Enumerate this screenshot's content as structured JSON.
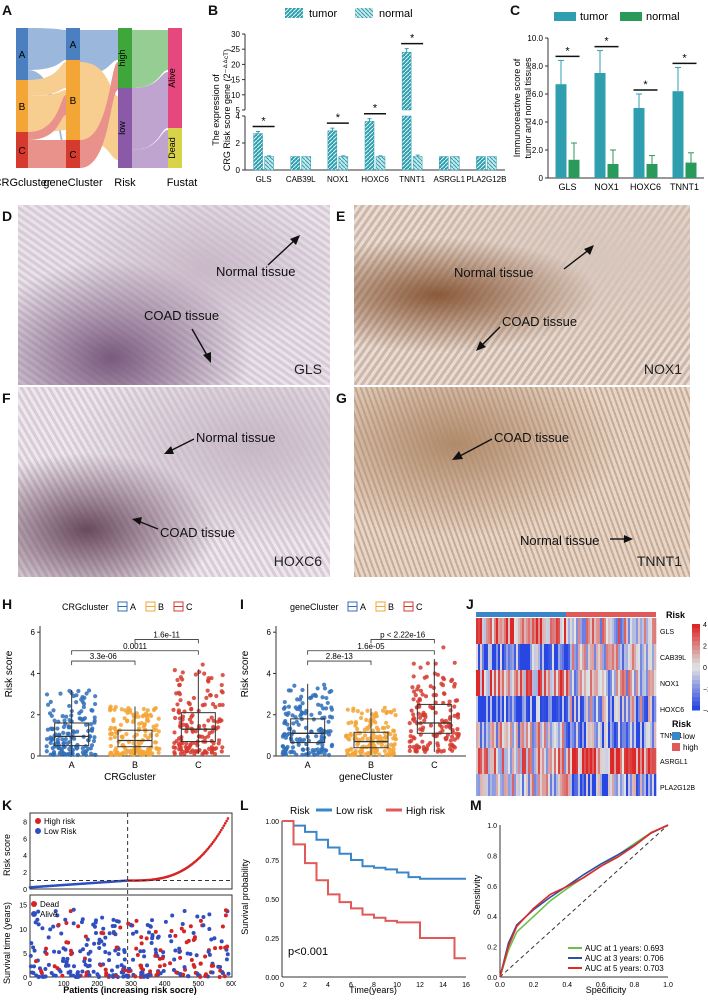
{
  "panels": {
    "A": "A",
    "B": "B",
    "C": "C",
    "D": "D",
    "E": "E",
    "F": "F",
    "G": "G",
    "H": "H",
    "I": "I",
    "J": "J",
    "K": "K",
    "L": "L",
    "M": "M"
  },
  "colors": {
    "cluster_A": "#4a7fc0",
    "cluster_B": "#f3a536",
    "cluster_C": "#d63a2e",
    "risk_high": "#3fa63c",
    "risk_low": "#8a5aa8",
    "alive": "#e6477d",
    "dead": "#d9d34a",
    "tumor": "#2f9fb0",
    "normal": "#2a9a5a",
    "km_low": "#3a86c8",
    "km_high": "#e05a5a"
  },
  "sankey": {
    "axes": [
      "CRGcluster",
      "geneCluster",
      "Risk",
      "Fustat"
    ],
    "crg_nodes": [
      "A",
      "B",
      "C"
    ],
    "gene_nodes": [
      "A",
      "B",
      "C"
    ],
    "risk_nodes": [
      "high",
      "low"
    ],
    "fustat_nodes": [
      "Alive",
      "Dead"
    ]
  },
  "panelB": {
    "legend": [
      "tumor",
      "normal"
    ],
    "ylabel_line1": "The expression of",
    "ylabel_line2": "CRG Risk score gene (2⁻ᐞᐞᶜᵀ)",
    "star": "*"
  },
  "panelC": {
    "legend": [
      "tumor",
      "normal"
    ],
    "ylabel_line1": "Immunoreactive score of",
    "ylabel_line2": "tumor and normal tissues",
    "star": "*"
  },
  "micro": {
    "D": {
      "gene": "GLS",
      "label1": "Normal tissue",
      "label2": "COAD tissue"
    },
    "E": {
      "gene": "NOX1",
      "label1": "Normal tissue",
      "label2": "COAD tissue"
    },
    "F": {
      "gene": "HOXC6",
      "label1": "Normal tissue",
      "label2": "COAD tissue"
    },
    "G": {
      "gene": "TNNT1",
      "label1": "COAD tissue",
      "label2": "Normal tissue"
    }
  },
  "panelH": {
    "legend_title": "CRGcluster",
    "legend": [
      "A",
      "B",
      "C"
    ],
    "pvals": [
      "3.3e-06",
      "0.0011",
      "1.6e-11"
    ],
    "ylabel": "Risk score",
    "xlabel": "CRGcluster"
  },
  "panelI": {
    "legend_title": "geneCluster",
    "legend": [
      "A",
      "B",
      "C"
    ],
    "pvals": [
      "2.8e-13",
      "1.6e-05",
      "p < 2.22e-16"
    ],
    "ylabel": "Risk score",
    "xlabel": "geneCluster"
  },
  "panelJ": {
    "title": "Risk",
    "legend_title": "Risk",
    "legend": [
      "low",
      "high"
    ],
    "colorbar_ticks": [
      "4",
      "2",
      "0",
      "−2",
      "−4"
    ]
  },
  "panelK": {
    "legend_top": [
      "High risk",
      "Low Risk"
    ],
    "legend_bottom": [
      "Dead",
      "Alive"
    ],
    "ylabel_top": "Risk score",
    "ylabel_bottom": "Survival time (years)",
    "xlabel": "Patients (increasing risk socre)"
  },
  "panelL": {
    "legend_title": "Risk",
    "legend": [
      "Low risk",
      "High risk"
    ],
    "ylabel": "Survival probability",
    "xlabel": "Time(years)",
    "pval": "p<0.001"
  },
  "panelM": {
    "ylabel": "Sensitivity",
    "xlabel": "Specificity",
    "legend": [
      "AUC at 1 years: 0.693",
      "AUC at 3 years: 0.706",
      "AUC at 5 years: 0.703"
    ],
    "legend_colors": [
      "#6cc04a",
      "#2c4fa8",
      "#e02a2a"
    ]
  },
  "chart_data": [
    {
      "type": "bar",
      "panel": "B",
      "categories": [
        "GLS",
        "CAB39L",
        "NOX1",
        "HOXC6",
        "TNNT1",
        "ASRGL1",
        "PLA2G12B"
      ],
      "series": [
        {
          "name": "tumor",
          "values": [
            2.7,
            1.0,
            2.9,
            3.6,
            24.0,
            1.0,
            1.0
          ]
        },
        {
          "name": "normal",
          "values": [
            1.0,
            1.0,
            1.0,
            1.0,
            1.0,
            1.0,
            1.0
          ]
        }
      ],
      "errors": {
        "tumor": [
          0.15,
          0,
          0.2,
          0.2,
          1.2,
          0,
          0
        ],
        "normal": [
          0.05,
          0,
          0.05,
          0.05,
          0.1,
          0,
          0
        ]
      },
      "significant": [
        true,
        false,
        true,
        true,
        true,
        false,
        false
      ],
      "yticks_lower": [
        0,
        2,
        4
      ],
      "yticks_upper": [
        5,
        10,
        15,
        20,
        25,
        30
      ],
      "ylim": [
        0,
        30
      ],
      "axis_break": [
        4.5,
        5
      ]
    },
    {
      "type": "bar",
      "panel": "C",
      "categories": [
        "GLS",
        "NOX1",
        "HOXC6",
        "TNNT1"
      ],
      "series": [
        {
          "name": "tumor",
          "values": [
            6.7,
            7.5,
            5.0,
            6.2
          ]
        },
        {
          "name": "normal",
          "values": [
            1.3,
            1.0,
            1.0,
            1.1
          ]
        }
      ],
      "errors": {
        "tumor": [
          1.7,
          1.6,
          1.0,
          1.7
        ],
        "normal": [
          1.2,
          1.0,
          0.6,
          0.7
        ]
      },
      "significant": [
        true,
        true,
        true,
        true
      ],
      "yticks": [
        0,
        2.0,
        4.0,
        6.0,
        8.0,
        10.0
      ],
      "ylim": [
        0,
        10
      ]
    },
    {
      "type": "box",
      "panel": "H",
      "categories": [
        "A",
        "B",
        "C"
      ],
      "boxes": [
        {
          "q1": 0.5,
          "median": 0.95,
          "q3": 1.6,
          "low": 0.05,
          "high": 3.2
        },
        {
          "q1": 0.45,
          "median": 0.75,
          "q3": 1.25,
          "low": 0.05,
          "high": 2.4
        },
        {
          "q1": 0.7,
          "median": 1.3,
          "q3": 2.1,
          "low": 0.1,
          "high": 4.2
        }
      ],
      "yticks": [
        0,
        2,
        4,
        6
      ],
      "ylim": [
        0,
        6.3
      ]
    },
    {
      "type": "box",
      "panel": "I",
      "categories": [
        "A",
        "B",
        "C"
      ],
      "boxes": [
        {
          "q1": 0.65,
          "median": 1.1,
          "q3": 1.8,
          "low": 0.05,
          "high": 3.5
        },
        {
          "q1": 0.4,
          "median": 0.7,
          "q3": 1.15,
          "low": 0.05,
          "high": 2.3
        },
        {
          "q1": 1.1,
          "median": 1.6,
          "q3": 2.5,
          "low": 0.2,
          "high": 4.7
        }
      ],
      "yticks": [
        0,
        2,
        4,
        6
      ],
      "ylim": [
        0,
        6.3
      ]
    },
    {
      "type": "heatmap",
      "panel": "J",
      "rows": [
        "GLS",
        "CAB39L",
        "NOX1",
        "HOXC6",
        "TNNT1",
        "ASRGL1",
        "PLA2G12B"
      ],
      "color_range": [
        -4,
        4
      ]
    },
    {
      "type": "scatter",
      "panel": "K",
      "top_yticks": [
        0,
        2,
        4,
        6,
        8
      ],
      "bottom_yticks": [
        0,
        5,
        10,
        15
      ],
      "xticks": [
        0,
        100,
        200,
        300,
        400,
        500,
        600
      ],
      "cutoff_patient": 290,
      "cutoff_risk": 1.0
    },
    {
      "type": "line",
      "panel": "L",
      "xticks": [
        0,
        2,
        4,
        6,
        8,
        10,
        12,
        14,
        16
      ],
      "yticks": [
        "0.00",
        "0.25",
        "0.50",
        "0.75",
        "1.00"
      ],
      "xlim": [
        0,
        16
      ],
      "ylim": [
        0,
        1
      ],
      "series": [
        {
          "name": "Low risk",
          "x": [
            0,
            1,
            2,
            3,
            4,
            5,
            6,
            7,
            8,
            9,
            10,
            11,
            12,
            16
          ],
          "y": [
            1,
            0.97,
            0.93,
            0.88,
            0.83,
            0.79,
            0.75,
            0.71,
            0.7,
            0.69,
            0.67,
            0.64,
            0.63,
            0.63
          ]
        },
        {
          "name": "High risk",
          "x": [
            0,
            1,
            2,
            3,
            4,
            5,
            6,
            7,
            8,
            9,
            10,
            11,
            12,
            15,
            16
          ],
          "y": [
            1,
            0.85,
            0.73,
            0.62,
            0.53,
            0.48,
            0.44,
            0.4,
            0.38,
            0.36,
            0.35,
            0.35,
            0.25,
            0.12,
            0.12
          ]
        }
      ]
    },
    {
      "type": "line",
      "panel": "M",
      "xticks": [
        "0.0",
        "0.2",
        "0.4",
        "0.6",
        "0.8",
        "1.0"
      ],
      "yticks": [
        "0.0",
        "0.2",
        "0.4",
        "0.6",
        "0.8",
        "1.0"
      ],
      "series": [
        {
          "name": "AUC at 1 years: 0.693",
          "x": [
            0,
            0.05,
            0.1,
            0.2,
            0.3,
            0.4,
            0.5,
            0.6,
            0.7,
            0.8,
            0.9,
            1
          ],
          "y": [
            0,
            0.18,
            0.3,
            0.4,
            0.5,
            0.58,
            0.66,
            0.73,
            0.8,
            0.88,
            0.95,
            1
          ]
        },
        {
          "name": "AUC at 3 years: 0.706",
          "x": [
            0,
            0.05,
            0.1,
            0.2,
            0.3,
            0.4,
            0.5,
            0.6,
            0.7,
            0.8,
            0.9,
            1
          ],
          "y": [
            0,
            0.22,
            0.34,
            0.44,
            0.53,
            0.6,
            0.67,
            0.74,
            0.8,
            0.87,
            0.95,
            1
          ]
        },
        {
          "name": "AUC at 5 years: 0.703",
          "x": [
            0,
            0.05,
            0.1,
            0.2,
            0.3,
            0.4,
            0.5,
            0.6,
            0.7,
            0.8,
            0.9,
            1
          ],
          "y": [
            0,
            0.2,
            0.33,
            0.45,
            0.54,
            0.6,
            0.66,
            0.73,
            0.79,
            0.86,
            0.95,
            1
          ]
        }
      ]
    }
  ]
}
